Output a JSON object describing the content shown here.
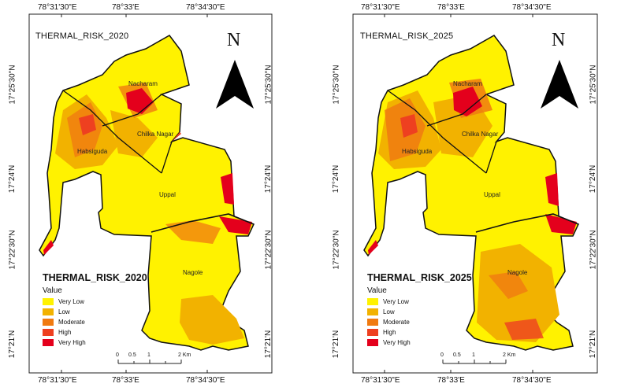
{
  "left_map": {
    "title": "THERMAL_RISK_2020",
    "legend_title": "THERMAL_RISK_2020"
  },
  "right_map": {
    "title": "THERMAL_RISK_2025",
    "legend_title": "THERMAL_RISK_2025"
  },
  "coords": {
    "lon": [
      "78°31'30\"E",
      "78°33'E",
      "78°34'30\"E"
    ],
    "lat": [
      "17°25'30\"N",
      "17°24'N",
      "17°22'30\"N",
      "17°21'N"
    ]
  },
  "north_arrow_label": "N",
  "legend": {
    "subtitle": "Value",
    "classes": [
      {
        "label": "Very Low",
        "color": "#fff200"
      },
      {
        "label": "Low",
        "color": "#f2b200"
      },
      {
        "label": "Moderate",
        "color": "#f07a10"
      },
      {
        "label": "High",
        "color": "#ee4020"
      },
      {
        "label": "Very High",
        "color": "#e4001c"
      }
    ]
  },
  "areas": [
    "Nacharam",
    "Chilka Nagar",
    "Habsiguda",
    "Uppal",
    "Nagole"
  ],
  "scale_bar": {
    "ticks": [
      "0",
      "0.5",
      "1",
      "2 Km"
    ]
  }
}
